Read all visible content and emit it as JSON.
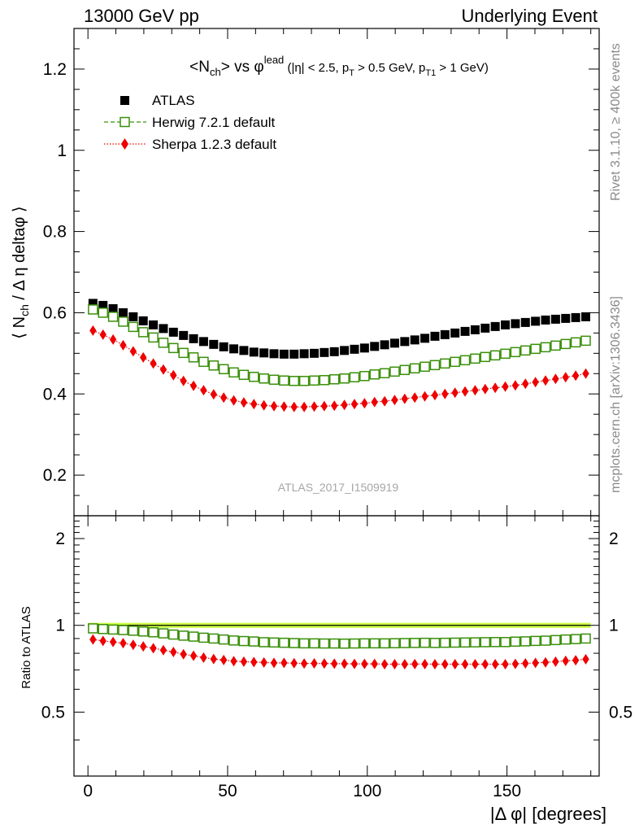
{
  "header": {
    "left": "13000 GeV pp",
    "right": "Underlying Event"
  },
  "side_labels": {
    "rivet": "Rivet 3.1.10, ≥ 400k events",
    "mcplots": "mcplots.cern.ch [arXiv:1306.3436]"
  },
  "watermark": "ATLAS_2017_I1509919",
  "colors": {
    "atlas": "#000000",
    "herwig": "#3a8f0a",
    "sherpa": "#ee0000",
    "band": "#ccff44"
  },
  "chart_data": [
    {
      "type": "scatter",
      "title": "<N_ch> vs φ^lead (|η| < 2.5, p_T > 0.5 GeV, p_T1 > 1 GeV)",
      "title_parts": {
        "nch": "<N",
        "ch_sub": "ch",
        "vs": "> vs φ",
        "lead_sup": "lead",
        "cuts_a": " (|η| < 2.5, p",
        "t_sub": "T",
        "cuts_b": " > 0.5 GeV, p",
        "t1_sub": "T1",
        "cuts_c": " > 1 GeV)"
      },
      "ylabel": "⟨ N_ch / Δη deltaφ ⟩",
      "ylabel_parts": {
        "a": "⟨ N",
        "sub": "ch",
        "b": " / Δ η deltaφ ⟩"
      },
      "xlim": [
        -5,
        183
      ],
      "ylim": [
        0.1,
        1.3
      ],
      "yticks": [
        0.2,
        0.4,
        0.6,
        0.8,
        1.0,
        1.2
      ],
      "ytick_labels": [
        "0.2",
        "0.4",
        "0.6",
        "0.8",
        "1",
        "1.2"
      ],
      "legend_position": "top-left",
      "legend": [
        "ATLAS",
        "Herwig 7.2.1 default",
        "Sherpa 1.2.3 default"
      ],
      "x": [
        1.8,
        5.4,
        9,
        12.6,
        16.2,
        19.8,
        23.4,
        27,
        30.6,
        34.2,
        37.8,
        41.4,
        45,
        48.6,
        52.2,
        55.8,
        59.4,
        63,
        66.6,
        70.2,
        73.8,
        77.4,
        81,
        84.6,
        88.2,
        91.8,
        95.4,
        99,
        102.6,
        106.2,
        109.8,
        113.4,
        117,
        120.6,
        124.2,
        127.8,
        131.4,
        135,
        138.6,
        142.2,
        145.8,
        149.4,
        153,
        156.6,
        160.2,
        163.8,
        167.4,
        171,
        174.6,
        178.2
      ],
      "series": [
        {
          "name": "ATLAS",
          "marker": "filled-square",
          "values": [
            0.623,
            0.618,
            0.61,
            0.6,
            0.59,
            0.58,
            0.57,
            0.561,
            0.552,
            0.544,
            0.536,
            0.529,
            0.522,
            0.516,
            0.511,
            0.507,
            0.503,
            0.501,
            0.499,
            0.498,
            0.498,
            0.499,
            0.5,
            0.502,
            0.504,
            0.507,
            0.51,
            0.513,
            0.517,
            0.521,
            0.525,
            0.529,
            0.533,
            0.537,
            0.542,
            0.546,
            0.55,
            0.554,
            0.558,
            0.562,
            0.566,
            0.57,
            0.573,
            0.576,
            0.579,
            0.582,
            0.584,
            0.586,
            0.588,
            0.59
          ]
        },
        {
          "name": "Herwig 7.2.1 default",
          "marker": "open-square-dashed-line",
          "values": [
            0.608,
            0.6,
            0.59,
            0.578,
            0.565,
            0.552,
            0.539,
            0.526,
            0.513,
            0.501,
            0.49,
            0.479,
            0.47,
            0.461,
            0.453,
            0.447,
            0.442,
            0.438,
            0.435,
            0.433,
            0.432,
            0.432,
            0.433,
            0.434,
            0.436,
            0.438,
            0.441,
            0.444,
            0.448,
            0.451,
            0.455,
            0.459,
            0.463,
            0.467,
            0.471,
            0.475,
            0.479,
            0.483,
            0.487,
            0.491,
            0.495,
            0.499,
            0.503,
            0.507,
            0.511,
            0.515,
            0.519,
            0.523,
            0.527,
            0.531
          ]
        },
        {
          "name": "Sherpa 1.2.3 default",
          "marker": "filled-diamond-dotted-line",
          "values": [
            0.556,
            0.546,
            0.534,
            0.52,
            0.505,
            0.49,
            0.475,
            0.46,
            0.446,
            0.432,
            0.42,
            0.409,
            0.399,
            0.391,
            0.384,
            0.379,
            0.375,
            0.372,
            0.37,
            0.369,
            0.368,
            0.368,
            0.369,
            0.37,
            0.371,
            0.373,
            0.375,
            0.377,
            0.38,
            0.382,
            0.385,
            0.388,
            0.391,
            0.394,
            0.397,
            0.4,
            0.403,
            0.406,
            0.409,
            0.412,
            0.415,
            0.418,
            0.421,
            0.425,
            0.429,
            0.433,
            0.437,
            0.441,
            0.445,
            0.45
          ]
        }
      ]
    },
    {
      "type": "scatter",
      "ylabel": "Ratio to ATLAS",
      "xlabel": "|Δ φ| [degrees]",
      "xlim": [
        -5,
        183
      ],
      "ylim": [
        0.3,
        2.4
      ],
      "yticks": [
        0.5,
        1,
        2
      ],
      "ytick_labels": [
        "0.5",
        "1",
        "2"
      ],
      "xticks": [
        0,
        50,
        100,
        150
      ],
      "xtick_labels": [
        "0",
        "50",
        "100",
        "150"
      ],
      "reference_line": 1.0,
      "reference_band": [
        0.98,
        1.02
      ],
      "series": [
        {
          "name": "Herwig 7.2.1 default",
          "values": [
            0.976,
            0.971,
            0.967,
            0.963,
            0.958,
            0.952,
            0.946,
            0.938,
            0.929,
            0.921,
            0.914,
            0.906,
            0.9,
            0.893,
            0.886,
            0.882,
            0.879,
            0.874,
            0.872,
            0.87,
            0.868,
            0.866,
            0.866,
            0.865,
            0.865,
            0.864,
            0.865,
            0.866,
            0.866,
            0.866,
            0.867,
            0.868,
            0.869,
            0.87,
            0.869,
            0.87,
            0.871,
            0.872,
            0.873,
            0.874,
            0.875,
            0.875,
            0.878,
            0.88,
            0.883,
            0.885,
            0.889,
            0.893,
            0.896,
            0.9
          ]
        },
        {
          "name": "Sherpa 1.2.3 default",
          "values": [
            0.893,
            0.883,
            0.876,
            0.867,
            0.856,
            0.845,
            0.833,
            0.82,
            0.808,
            0.794,
            0.784,
            0.773,
            0.764,
            0.758,
            0.751,
            0.748,
            0.746,
            0.743,
            0.741,
            0.741,
            0.739,
            0.737,
            0.738,
            0.737,
            0.736,
            0.736,
            0.735,
            0.735,
            0.735,
            0.733,
            0.733,
            0.733,
            0.734,
            0.734,
            0.733,
            0.733,
            0.733,
            0.733,
            0.733,
            0.733,
            0.733,
            0.733,
            0.735,
            0.738,
            0.741,
            0.744,
            0.748,
            0.753,
            0.757,
            0.763
          ]
        }
      ]
    }
  ]
}
